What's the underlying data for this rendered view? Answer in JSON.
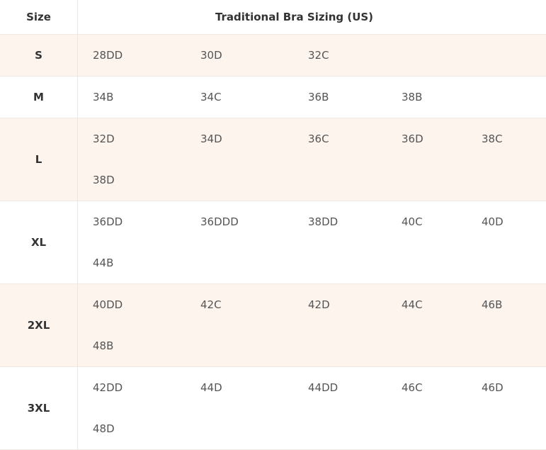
{
  "header": {
    "size_label": "Size",
    "title": "Traditional Bra Sizing (US)"
  },
  "rows": [
    {
      "size": "S",
      "values": [
        "28DD",
        "30D",
        "32C"
      ]
    },
    {
      "size": "M",
      "values": [
        "34B",
        "34C",
        "36B",
        "38B"
      ]
    },
    {
      "size": "L",
      "values": [
        "32D",
        "34D",
        "36C",
        "36D",
        "38C",
        "38D"
      ]
    },
    {
      "size": "XL",
      "values": [
        "36DD",
        "36DDD",
        "38DD",
        "40C",
        "40D",
        "44B"
      ]
    },
    {
      "size": "2XL",
      "values": [
        "40DD",
        "42C",
        "42D",
        "44C",
        "46B",
        "48B"
      ]
    },
    {
      "size": "3XL",
      "values": [
        "42DD",
        "44D",
        "44DD",
        "46C",
        "46D",
        "48D"
      ]
    }
  ],
  "colors": {
    "alt_row": "#fdf4ee",
    "text": "#333333"
  }
}
